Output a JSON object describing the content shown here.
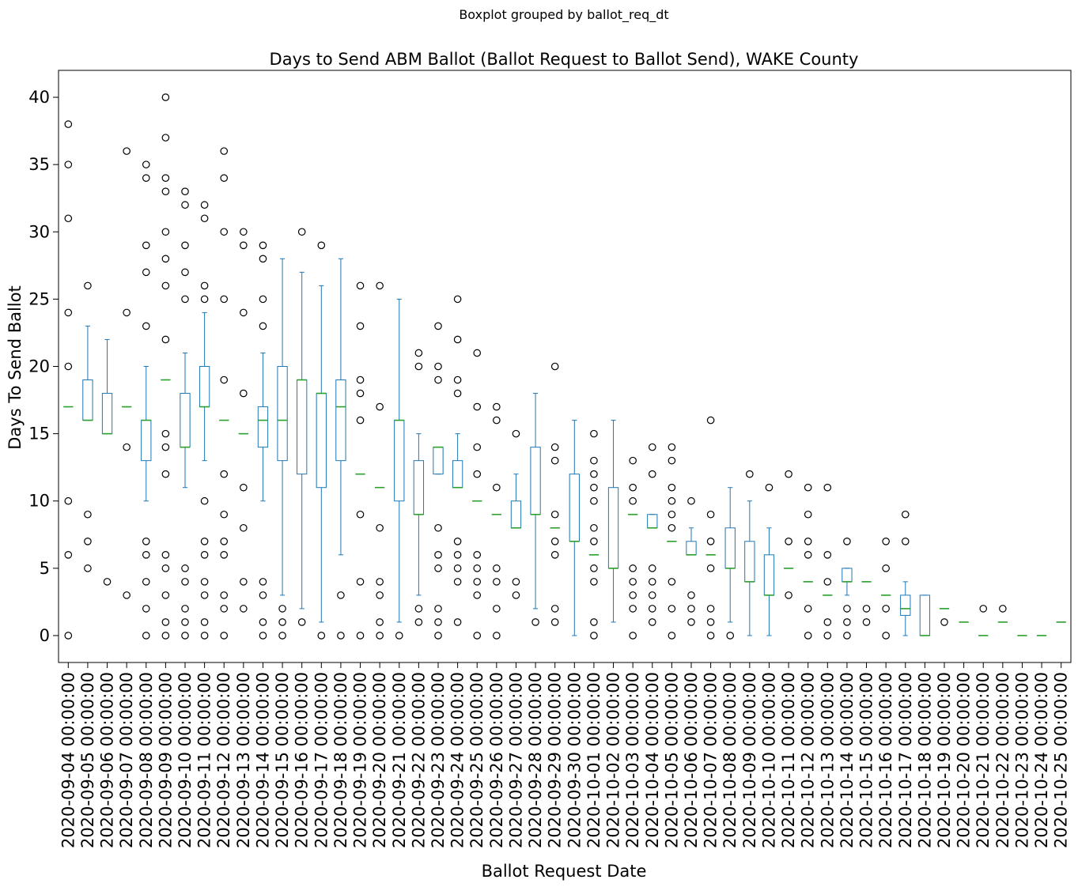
{
  "chart_data": {
    "type": "boxplot",
    "suptitle": "Boxplot grouped by ballot_req_dt",
    "title": "Days to Send ABM Ballot (Ballot Request to Ballot Send), WAKE County",
    "xlabel": "Ballot Request Date",
    "ylabel": "Days To Send Ballot",
    "ylim": [
      -2,
      42
    ],
    "yticks": [
      0,
      5,
      10,
      15,
      20,
      25,
      30,
      35,
      40
    ],
    "grid": false,
    "colors": {
      "box": "#1f77b4",
      "median": "#2ca02c",
      "flier": "#000000"
    },
    "categories": [
      "2020-09-04 00:00:00",
      "2020-09-05 00:00:00",
      "2020-09-06 00:00:00",
      "2020-09-07 00:00:00",
      "2020-09-08 00:00:00",
      "2020-09-09 00:00:00",
      "2020-09-10 00:00:00",
      "2020-09-11 00:00:00",
      "2020-09-12 00:00:00",
      "2020-09-13 00:00:00",
      "2020-09-14 00:00:00",
      "2020-09-15 00:00:00",
      "2020-09-16 00:00:00",
      "2020-09-17 00:00:00",
      "2020-09-18 00:00:00",
      "2020-09-19 00:00:00",
      "2020-09-20 00:00:00",
      "2020-09-21 00:00:00",
      "2020-09-22 00:00:00",
      "2020-09-23 00:00:00",
      "2020-09-24 00:00:00",
      "2020-09-25 00:00:00",
      "2020-09-26 00:00:00",
      "2020-09-27 00:00:00",
      "2020-09-28 00:00:00",
      "2020-09-29 00:00:00",
      "2020-09-30 00:00:00",
      "2020-10-01 00:00:00",
      "2020-10-02 00:00:00",
      "2020-10-03 00:00:00",
      "2020-10-04 00:00:00",
      "2020-10-05 00:00:00",
      "2020-10-06 00:00:00",
      "2020-10-07 00:00:00",
      "2020-10-08 00:00:00",
      "2020-10-09 00:00:00",
      "2020-10-10 00:00:00",
      "2020-10-11 00:00:00",
      "2020-10-12 00:00:00",
      "2020-10-13 00:00:00",
      "2020-10-14 00:00:00",
      "2020-10-15 00:00:00",
      "2020-10-16 00:00:00",
      "2020-10-17 00:00:00",
      "2020-10-18 00:00:00",
      "2020-10-19 00:00:00",
      "2020-10-20 00:00:00",
      "2020-10-21 00:00:00",
      "2020-10-22 00:00:00",
      "2020-10-23 00:00:00",
      "2020-10-24 00:00:00",
      "2020-10-25 00:00:00"
    ],
    "boxes": [
      {
        "wl": 17,
        "q1": 17,
        "med": 17,
        "q3": 17,
        "wh": 17,
        "fliers": [
          0,
          6,
          10,
          20,
          24,
          31,
          35,
          38
        ]
      },
      {
        "wl": 16,
        "q1": 16,
        "med": 16,
        "q3": 19,
        "wh": 23,
        "fliers": [
          5,
          7,
          9,
          26
        ]
      },
      {
        "wl": 15,
        "q1": 15,
        "med": 15,
        "q3": 18,
        "wh": 22,
        "fliers": [
          4
        ]
      },
      {
        "wl": 17,
        "q1": 17,
        "med": 17,
        "q3": 17,
        "wh": 17,
        "fliers": [
          3,
          14,
          24,
          36
        ]
      },
      {
        "wl": 10,
        "q1": 13,
        "med": 16,
        "q3": 16,
        "wh": 20,
        "fliers": [
          0,
          2,
          4,
          6,
          7,
          23,
          27,
          29,
          34,
          35
        ]
      },
      {
        "wl": 19,
        "q1": 19,
        "med": 19,
        "q3": 19,
        "wh": 19,
        "fliers": [
          0,
          1,
          3,
          5,
          6,
          12,
          14,
          15,
          22,
          26,
          28,
          30,
          33,
          34,
          37,
          40
        ]
      },
      {
        "wl": 11,
        "q1": 14,
        "med": 14,
        "q3": 18,
        "wh": 21,
        "fliers": [
          0,
          1,
          2,
          4,
          5,
          25,
          27,
          29,
          32,
          33
        ]
      },
      {
        "wl": 13,
        "q1": 17,
        "med": 17,
        "q3": 20,
        "wh": 24,
        "fliers": [
          0,
          1,
          3,
          4,
          6,
          7,
          10,
          25,
          26,
          31,
          32
        ]
      },
      {
        "wl": 16,
        "q1": 16,
        "med": 16,
        "q3": 16,
        "wh": 16,
        "fliers": [
          0,
          2,
          3,
          6,
          7,
          9,
          12,
          19,
          25,
          30,
          34,
          36
        ]
      },
      {
        "wl": 15,
        "q1": 15,
        "med": 15,
        "q3": 15,
        "wh": 15,
        "fliers": [
          2,
          4,
          8,
          11,
          18,
          24,
          29,
          30
        ]
      },
      {
        "wl": 10,
        "q1": 14,
        "med": 16,
        "q3": 17,
        "wh": 21,
        "fliers": [
          0,
          1,
          3,
          4,
          23,
          25,
          28,
          29
        ]
      },
      {
        "wl": 3,
        "q1": 13,
        "med": 16,
        "q3": 20,
        "wh": 28,
        "fliers": [
          0,
          1,
          2
        ]
      },
      {
        "wl": 2,
        "q1": 12,
        "med": 19,
        "q3": 19,
        "wh": 27,
        "fliers": [
          1,
          30
        ]
      },
      {
        "wl": 1,
        "q1": 11,
        "med": 18,
        "q3": 18,
        "wh": 26,
        "fliers": [
          0,
          29
        ]
      },
      {
        "wl": 6,
        "q1": 13,
        "med": 17,
        "q3": 19,
        "wh": 28,
        "fliers": [
          0,
          3
        ]
      },
      {
        "wl": 12,
        "q1": 12,
        "med": 12,
        "q3": 12,
        "wh": 12,
        "fliers": [
          0,
          4,
          9,
          16,
          18,
          19,
          23,
          26
        ]
      },
      {
        "wl": 11,
        "q1": 11,
        "med": 11,
        "q3": 11,
        "wh": 11,
        "fliers": [
          0,
          1,
          3,
          4,
          8,
          17,
          26
        ]
      },
      {
        "wl": 1,
        "q1": 10,
        "med": 16,
        "q3": 16,
        "wh": 25,
        "fliers": [
          0
        ]
      },
      {
        "wl": 3,
        "q1": 9,
        "med": 9,
        "q3": 13,
        "wh": 15,
        "fliers": [
          1,
          2,
          20,
          21
        ]
      },
      {
        "wl": 12,
        "q1": 12,
        "med": 14,
        "q3": 14,
        "wh": 14,
        "fliers": [
          0,
          1,
          2,
          5,
          6,
          8,
          19,
          20,
          23
        ]
      },
      {
        "wl": 11,
        "q1": 11,
        "med": 11,
        "q3": 13,
        "wh": 15,
        "fliers": [
          1,
          4,
          5,
          6,
          7,
          18,
          19,
          22,
          25
        ]
      },
      {
        "wl": 10,
        "q1": 10,
        "med": 10,
        "q3": 10,
        "wh": 10,
        "fliers": [
          0,
          3,
          4,
          5,
          6,
          12,
          14,
          17,
          21
        ]
      },
      {
        "wl": 9,
        "q1": 9,
        "med": 9,
        "q3": 9,
        "wh": 9,
        "fliers": [
          0,
          2,
          4,
          5,
          11,
          16,
          17
        ]
      },
      {
        "wl": 8,
        "q1": 8,
        "med": 8,
        "q3": 10,
        "wh": 12,
        "fliers": [
          3,
          4,
          15
        ]
      },
      {
        "wl": 2,
        "q1": 9,
        "med": 9,
        "q3": 14,
        "wh": 18,
        "fliers": [
          1
        ]
      },
      {
        "wl": 8,
        "q1": 8,
        "med": 8,
        "q3": 8,
        "wh": 8,
        "fliers": [
          1,
          2,
          6,
          7,
          9,
          13,
          14,
          20
        ]
      },
      {
        "wl": 0,
        "q1": 7,
        "med": 7,
        "q3": 12,
        "wh": 16,
        "fliers": []
      },
      {
        "wl": 6,
        "q1": 6,
        "med": 6,
        "q3": 6,
        "wh": 6,
        "fliers": [
          0,
          1,
          4,
          5,
          7,
          8,
          10,
          11,
          12,
          13,
          15
        ]
      },
      {
        "wl": 1,
        "q1": 5,
        "med": 5,
        "q3": 11,
        "wh": 16,
        "fliers": []
      },
      {
        "wl": 9,
        "q1": 9,
        "med": 9,
        "q3": 9,
        "wh": 9,
        "fliers": [
          0,
          2,
          3,
          4,
          5,
          10,
          11,
          13
        ]
      },
      {
        "wl": 8,
        "q1": 8,
        "med": 8,
        "q3": 9,
        "wh": 9,
        "fliers": [
          1,
          2,
          3,
          4,
          5,
          12,
          14
        ]
      },
      {
        "wl": 7,
        "q1": 7,
        "med": 7,
        "q3": 7,
        "wh": 7,
        "fliers": [
          0,
          2,
          4,
          8,
          9,
          10,
          11,
          13,
          14
        ]
      },
      {
        "wl": 6,
        "q1": 6,
        "med": 6,
        "q3": 7,
        "wh": 8,
        "fliers": [
          1,
          2,
          3,
          10
        ]
      },
      {
        "wl": 6,
        "q1": 6,
        "med": 6,
        "q3": 6,
        "wh": 6,
        "fliers": [
          0,
          1,
          2,
          5,
          7,
          9,
          16
        ]
      },
      {
        "wl": 1,
        "q1": 5,
        "med": 5,
        "q3": 8,
        "wh": 11,
        "fliers": [
          0
        ]
      },
      {
        "wl": 0,
        "q1": 4,
        "med": 4,
        "q3": 7,
        "wh": 10,
        "fliers": [
          12
        ]
      },
      {
        "wl": 0,
        "q1": 3,
        "med": 3,
        "q3": 6,
        "wh": 8,
        "fliers": [
          11
        ]
      },
      {
        "wl": 5,
        "q1": 5,
        "med": 5,
        "q3": 5,
        "wh": 5,
        "fliers": [
          3,
          7,
          12
        ]
      },
      {
        "wl": 4,
        "q1": 4,
        "med": 4,
        "q3": 4,
        "wh": 4,
        "fliers": [
          0,
          2,
          6,
          7,
          9,
          11
        ]
      },
      {
        "wl": 3,
        "q1": 3,
        "med": 3,
        "q3": 3,
        "wh": 3,
        "fliers": [
          0,
          1,
          4,
          6,
          11
        ]
      },
      {
        "wl": 3,
        "q1": 4,
        "med": 4,
        "q3": 5,
        "wh": 5,
        "fliers": [
          0,
          1,
          2,
          7
        ]
      },
      {
        "wl": 4,
        "q1": 4,
        "med": 4,
        "q3": 4,
        "wh": 4,
        "fliers": [
          1,
          2
        ]
      },
      {
        "wl": 3,
        "q1": 3,
        "med": 3,
        "q3": 3,
        "wh": 3,
        "fliers": [
          0,
          2,
          5,
          7
        ]
      },
      {
        "wl": 0,
        "q1": 1.5,
        "med": 2,
        "q3": 3,
        "wh": 4,
        "fliers": [
          7,
          9
        ]
      },
      {
        "wl": 0,
        "q1": 0,
        "med": 0,
        "q3": 3,
        "wh": 3,
        "fliers": []
      },
      {
        "wl": 2,
        "q1": 2,
        "med": 2,
        "q3": 2,
        "wh": 2,
        "fliers": [
          1
        ]
      },
      {
        "wl": 1,
        "q1": 1,
        "med": 1,
        "q3": 1,
        "wh": 1,
        "fliers": []
      },
      {
        "wl": 0,
        "q1": 0,
        "med": 0,
        "q3": 0,
        "wh": 0,
        "fliers": [
          2
        ]
      },
      {
        "wl": 1,
        "q1": 1,
        "med": 1,
        "q3": 1,
        "wh": 1,
        "fliers": [
          2
        ]
      },
      {
        "wl": 0,
        "q1": 0,
        "med": 0,
        "q3": 0,
        "wh": 0,
        "fliers": []
      },
      {
        "wl": 0,
        "q1": 0,
        "med": 0,
        "q3": 0,
        "wh": 0,
        "fliers": []
      },
      {
        "wl": 1,
        "q1": 1,
        "med": 1,
        "q3": 1,
        "wh": 1,
        "fliers": []
      }
    ]
  }
}
